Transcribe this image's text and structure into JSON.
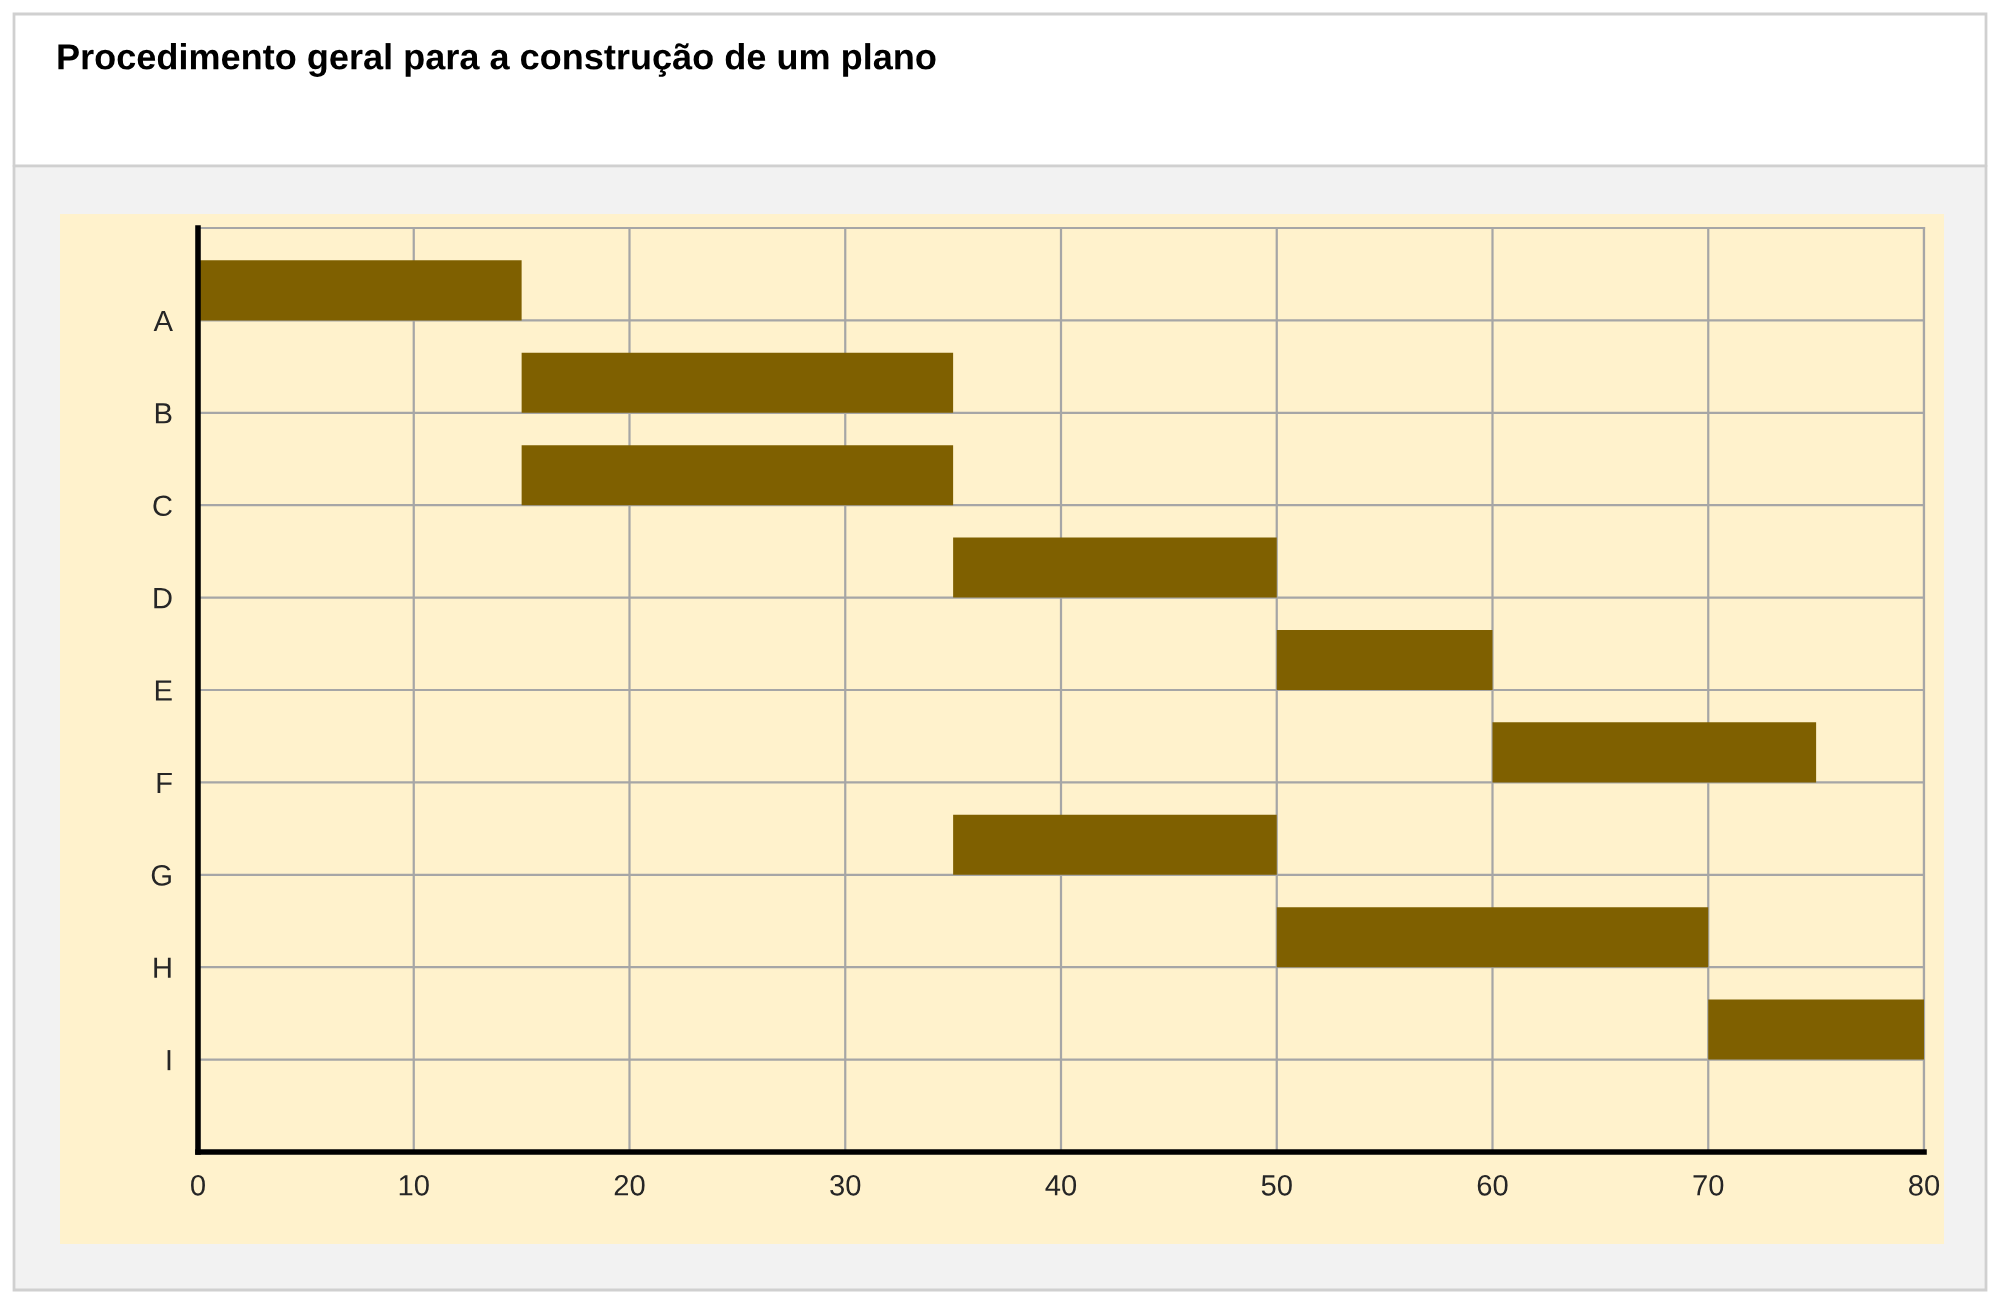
{
  "chart_data": {
    "type": "bar",
    "orientation": "horizontal",
    "title": "Procedimento geral para a construção de um plano",
    "categories": [
      "A",
      "B",
      "C",
      "D",
      "E",
      "F",
      "G",
      "H",
      "I"
    ],
    "base": [
      0,
      15,
      15,
      35,
      50,
      60,
      35,
      50,
      70
    ],
    "values": [
      15,
      20,
      20,
      15,
      10,
      15,
      15,
      20,
      10
    ],
    "color": "#7f6000",
    "xlim": [
      0,
      80
    ],
    "xticks": [
      0,
      10,
      20,
      30,
      40,
      50,
      60,
      70,
      80
    ],
    "grid": true
  }
}
